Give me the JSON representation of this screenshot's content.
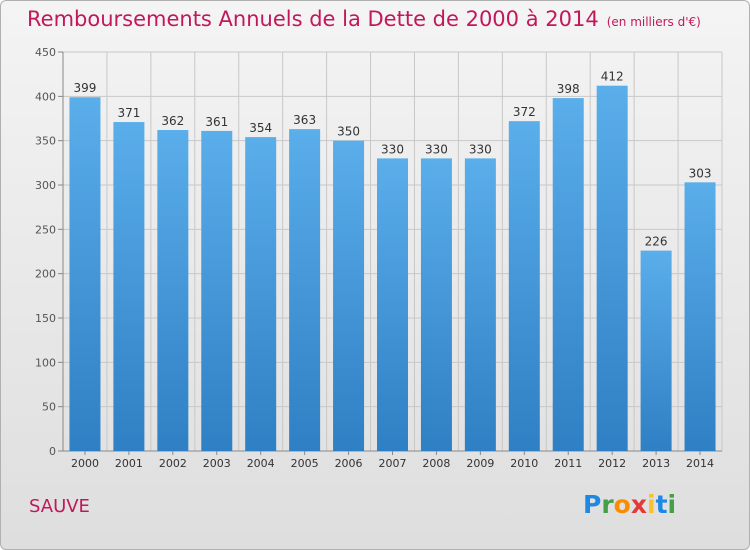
{
  "header": {
    "title": "Remboursements Annuels de la Dette de 2000 à 2014",
    "unit": "(en milliers d'€)"
  },
  "footer": {
    "commune": "SAUVE",
    "logo": "Proxiti"
  },
  "colors": {
    "title": "#c2185b",
    "bar_top": "#5aaeea",
    "bar_bottom": "#2f7fc4",
    "grid": "#c8c8c8"
  },
  "chart_data": {
    "type": "bar",
    "title": "Remboursements Annuels de la Dette de 2000 à 2014",
    "xlabel": "",
    "ylabel": "",
    "categories": [
      "2000",
      "2001",
      "2002",
      "2003",
      "2004",
      "2005",
      "2006",
      "2007",
      "2008",
      "2009",
      "2010",
      "2011",
      "2012",
      "2013",
      "2014"
    ],
    "values": [
      399,
      371,
      362,
      361,
      354,
      363,
      350,
      330,
      330,
      330,
      372,
      398,
      412,
      226,
      303
    ],
    "ylim": [
      0,
      450
    ],
    "yticks": [
      0,
      50,
      100,
      150,
      200,
      250,
      300,
      350,
      400,
      450
    ],
    "grid": true
  }
}
